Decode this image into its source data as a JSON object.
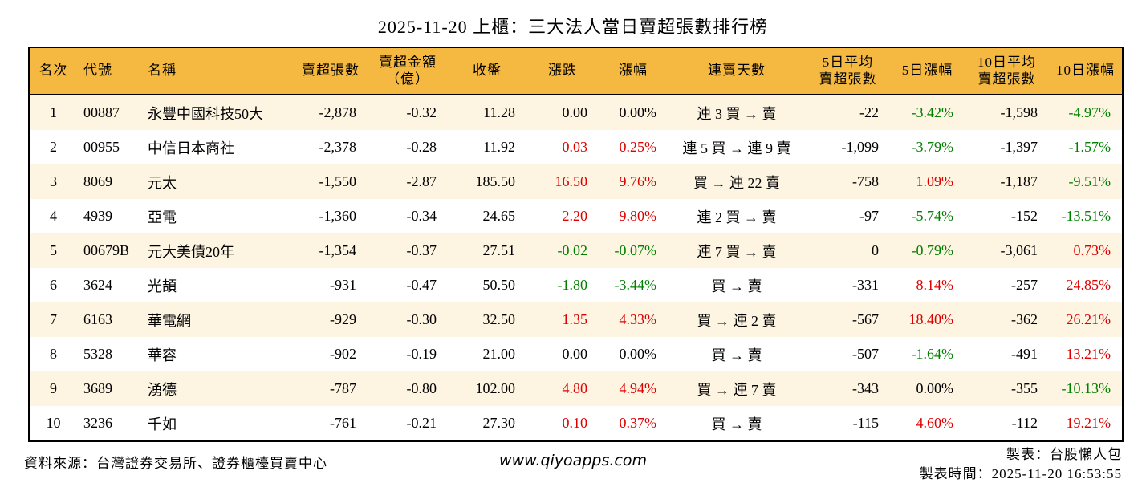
{
  "title": "2025-11-20 上櫃：三大法人當日賣超張數排行榜",
  "colors": {
    "header_bg": "#f5b942",
    "row_odd_bg": "#fdf5e2",
    "row_even_bg": "#ffffff",
    "up_red": "#dd0000",
    "down_green": "#008000",
    "border": "#000000"
  },
  "table": {
    "columns": [
      {
        "key": "rank",
        "label": "名次"
      },
      {
        "key": "code",
        "label": "代號"
      },
      {
        "key": "name",
        "label": "名稱"
      },
      {
        "key": "sell-volume",
        "label": "賣超張數"
      },
      {
        "key": "sell-amount",
        "label": "賣超金額\n（億）"
      },
      {
        "key": "close",
        "label": "收盤"
      },
      {
        "key": "change",
        "label": "漲跌"
      },
      {
        "key": "change-pct",
        "label": "漲幅"
      },
      {
        "key": "streak",
        "label": "連賣天數"
      },
      {
        "key": "avg5-volume",
        "label": "5日平均\n賣超張數"
      },
      {
        "key": "pct5",
        "label": "5日漲幅"
      },
      {
        "key": "avg10-volume",
        "label": "10日平均\n賣超張數"
      },
      {
        "key": "pct10",
        "label": "10日漲幅"
      }
    ],
    "rows": [
      {
        "cells": [
          "1",
          "00887",
          "永豐中國科技50大",
          "-2,878",
          "-0.32",
          "11.28",
          "0.00",
          "0.00%",
          "連 3 買 → 賣",
          "-22",
          "-3.42%",
          "-1,598",
          "-4.97%"
        ],
        "cell_colors": [
          null,
          null,
          null,
          null,
          null,
          null,
          null,
          null,
          null,
          null,
          "green",
          null,
          "green"
        ]
      },
      {
        "cells": [
          "2",
          "00955",
          "中信日本商社",
          "-2,378",
          "-0.28",
          "11.92",
          "0.03",
          "0.25%",
          "連 5 買 → 連 9 賣",
          "-1,099",
          "-3.79%",
          "-1,397",
          "-1.57%"
        ],
        "cell_colors": [
          null,
          null,
          null,
          null,
          null,
          null,
          "red",
          "red",
          null,
          null,
          "green",
          null,
          "green"
        ]
      },
      {
        "cells": [
          "3",
          "8069",
          "元太",
          "-1,550",
          "-2.87",
          "185.50",
          "16.50",
          "9.76%",
          "買 → 連 22 賣",
          "-758",
          "1.09%",
          "-1,187",
          "-9.51%"
        ],
        "cell_colors": [
          null,
          null,
          null,
          null,
          null,
          null,
          "red",
          "red",
          null,
          null,
          "red",
          null,
          "green"
        ]
      },
      {
        "cells": [
          "4",
          "4939",
          "亞電",
          "-1,360",
          "-0.34",
          "24.65",
          "2.20",
          "9.80%",
          "連 2 買 → 賣",
          "-97",
          "-5.74%",
          "-152",
          "-13.51%"
        ],
        "cell_colors": [
          null,
          null,
          null,
          null,
          null,
          null,
          "red",
          "red",
          null,
          null,
          "green",
          null,
          "green"
        ]
      },
      {
        "cells": [
          "5",
          "00679B",
          "元大美債20年",
          "-1,354",
          "-0.37",
          "27.51",
          "-0.02",
          "-0.07%",
          "連 7 買 → 賣",
          "0",
          "-0.79%",
          "-3,061",
          "0.73%"
        ],
        "cell_colors": [
          null,
          null,
          null,
          null,
          null,
          null,
          "green",
          "green",
          null,
          null,
          "green",
          null,
          "red"
        ]
      },
      {
        "cells": [
          "6",
          "3624",
          "光頡",
          "-931",
          "-0.47",
          "50.50",
          "-1.80",
          "-3.44%",
          "買 → 賣",
          "-331",
          "8.14%",
          "-257",
          "24.85%"
        ],
        "cell_colors": [
          null,
          null,
          null,
          null,
          null,
          null,
          "green",
          "green",
          null,
          null,
          "red",
          null,
          "red"
        ]
      },
      {
        "cells": [
          "7",
          "6163",
          "華電網",
          "-929",
          "-0.30",
          "32.50",
          "1.35",
          "4.33%",
          "買 → 連 2 賣",
          "-567",
          "18.40%",
          "-362",
          "26.21%"
        ],
        "cell_colors": [
          null,
          null,
          null,
          null,
          null,
          null,
          "red",
          "red",
          null,
          null,
          "red",
          null,
          "red"
        ]
      },
      {
        "cells": [
          "8",
          "5328",
          "華容",
          "-902",
          "-0.19",
          "21.00",
          "0.00",
          "0.00%",
          "買 → 賣",
          "-507",
          "-1.64%",
          "-491",
          "13.21%"
        ],
        "cell_colors": [
          null,
          null,
          null,
          null,
          null,
          null,
          null,
          null,
          null,
          null,
          "green",
          null,
          "red"
        ]
      },
      {
        "cells": [
          "9",
          "3689",
          "湧德",
          "-787",
          "-0.80",
          "102.00",
          "4.80",
          "4.94%",
          "買 → 連 7 賣",
          "-343",
          "0.00%",
          "-355",
          "-10.13%"
        ],
        "cell_colors": [
          null,
          null,
          null,
          null,
          null,
          null,
          "red",
          "red",
          null,
          null,
          null,
          null,
          "green"
        ]
      },
      {
        "cells": [
          "10",
          "3236",
          "千如",
          "-761",
          "-0.21",
          "27.30",
          "0.10",
          "0.37%",
          "買 → 賣",
          "-115",
          "4.60%",
          "-112",
          "19.21%"
        ],
        "cell_colors": [
          null,
          null,
          null,
          null,
          null,
          null,
          "red",
          "red",
          null,
          null,
          "red",
          null,
          "red"
        ]
      }
    ]
  },
  "footer": {
    "source": "資料來源：台灣證券交易所、證券櫃檯買賣中心",
    "website": "www.qiyoapps.com",
    "maker": "製表：台股懶人包",
    "time": "製表時間：2025-11-20 16:53:55"
  }
}
